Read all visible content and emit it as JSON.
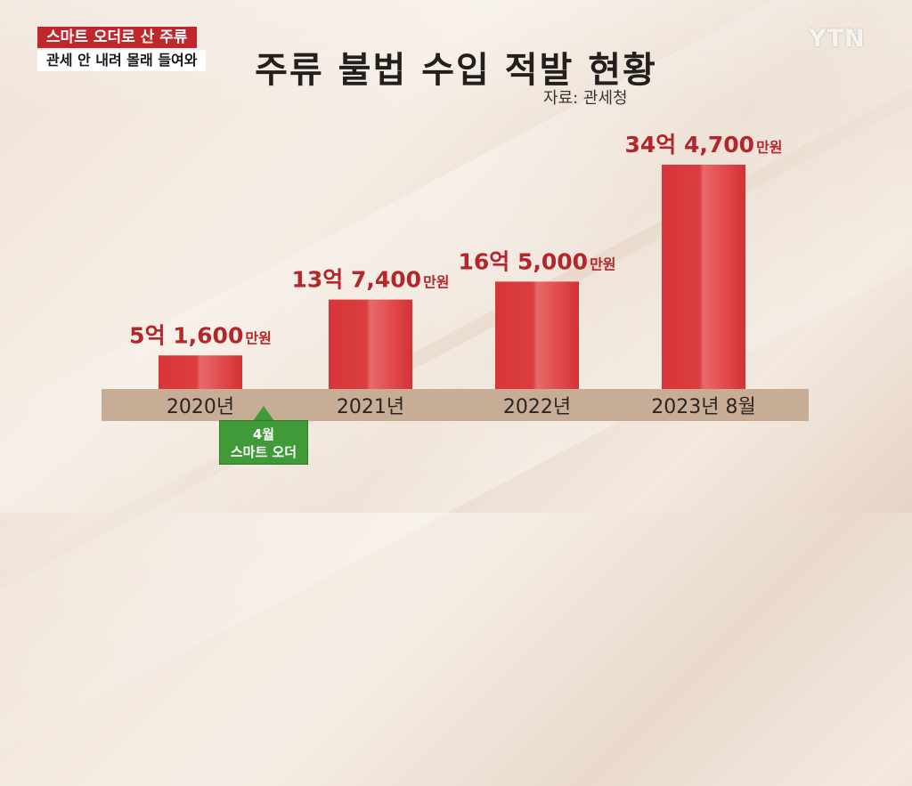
{
  "caption": {
    "line1": "스마트 오더로 산 주류",
    "line2": "관세 안 내려 몰래 들여와"
  },
  "logo": "YTN",
  "chart_data": {
    "type": "bar",
    "title": "주류 불법 수입 적발 현황",
    "source": "자료: 관세청",
    "unit": "억원",
    "categories": [
      "2020년",
      "2021년",
      "2022년",
      "2023년 8월"
    ],
    "values": [
      5.16,
      13.74,
      16.5,
      34.47
    ],
    "value_labels": [
      {
        "big": "5억 1,600",
        "small": "만원"
      },
      {
        "big": "13억 7,400",
        "small": "만원"
      },
      {
        "big": "16억 5,000",
        "small": "만원"
      },
      {
        "big": "34억 4,700",
        "small": "만원"
      }
    ],
    "ylim": [
      0,
      34.47
    ],
    "bar_color": "#d9373a",
    "label_color": "#b3262a",
    "axis_band_color": "#c8ad96"
  },
  "annotation": {
    "line1": "4월",
    "line2": "스마트 오더",
    "color": "#3f9a37"
  }
}
